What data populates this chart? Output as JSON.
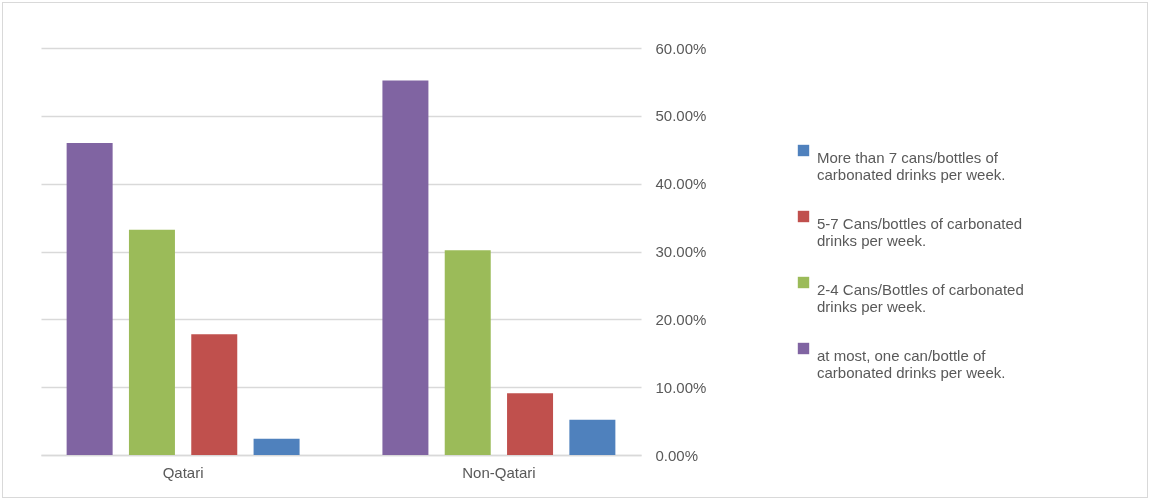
{
  "chart_data": {
    "type": "bar",
    "categories": [
      "Qatari",
      "Non-Qatari"
    ],
    "series": [
      {
        "name": "More than 7 cans/bottles of carbonated drinks per week.",
        "color": "#4f81bd",
        "values": [
          2.4,
          5.2
        ]
      },
      {
        "name": "5-7 Cans/bottles of carbonated drinks per week.",
        "color": "#c0504d",
        "values": [
          17.8,
          9.1
        ]
      },
      {
        "name": "2-4 Cans/Bottles of carbonated drinks per week.",
        "color": "#9bbb59",
        "values": [
          33.2,
          30.2
        ]
      },
      {
        "name": "at most, one can/bottle of carbonated drinks per week.",
        "color": "#8064a2",
        "values": [
          46.0,
          55.2
        ]
      }
    ],
    "ylim": [
      0,
      60
    ],
    "yticks": [
      {
        "value": 0,
        "label": "0.00%"
      },
      {
        "value": 10,
        "label": "10.00%"
      },
      {
        "value": 20,
        "label": "20.00%"
      },
      {
        "value": 30,
        "label": "30.00%"
      },
      {
        "value": 40,
        "label": "40.00%"
      },
      {
        "value": 50,
        "label": "50.00%"
      },
      {
        "value": 60,
        "label": "60.00%"
      }
    ],
    "grid": "y",
    "legend": "right"
  }
}
